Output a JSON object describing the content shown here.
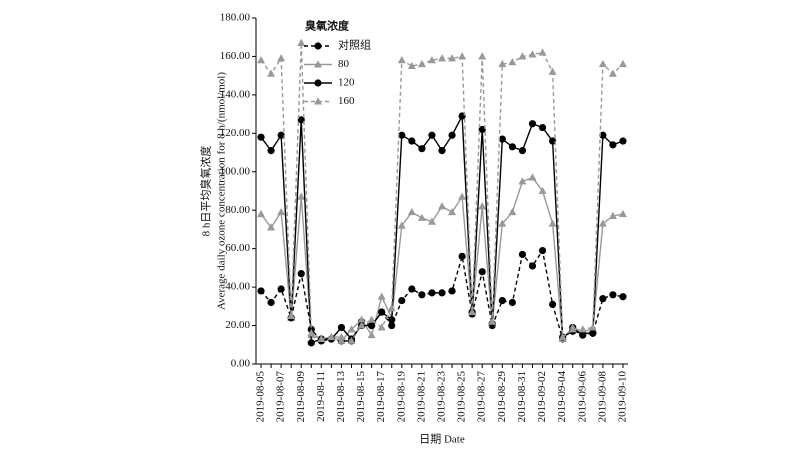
{
  "chart_data": {
    "type": "line",
    "ylabel": [
      "8 h日平均臭氧浓度",
      "Average daily ozone concentration for 8 h/(nmol/mol)"
    ],
    "xlabel": "日期 Date",
    "legend_title": "臭氧浓度",
    "legend": "upper left",
    "categories": [
      "2019-08-05",
      null,
      "2019-08-07",
      null,
      "2019-08-09",
      null,
      "2019-08-11",
      null,
      "2019-08-13",
      null,
      "2019-08-15",
      null,
      "2019-08-17",
      null,
      "2019-08-19",
      null,
      "2019-08-21",
      null,
      "2019-08-23",
      null,
      "2019-08-25",
      null,
      "2019-08-27",
      null,
      "2019-08-29",
      null,
      "2019-08-31",
      null,
      "2019-09-02",
      null,
      "2019-09-04",
      null,
      "2019-09-06",
      null,
      "2019-09-08",
      null,
      "2019-09-10"
    ],
    "ylim": [
      0,
      180
    ],
    "yticks": [
      {
        "value": 0,
        "label": "0.00"
      },
      {
        "value": 20,
        "label": "20.00"
      },
      {
        "value": 40,
        "label": "40.00"
      },
      {
        "value": 60,
        "label": "60.00"
      },
      {
        "value": 80,
        "label": "80.00"
      },
      {
        "value": 100,
        "label": "100.00"
      },
      {
        "value": 120,
        "label": "120.00"
      },
      {
        "value": 140,
        "label": "140.00"
      },
      {
        "value": 160,
        "label": "160.00"
      },
      {
        "value": 180,
        "label": "180.00"
      }
    ],
    "series": [
      {
        "name": "对照组",
        "color": "#000000",
        "dash": true,
        "marker": "circle",
        "values": [
          38,
          32,
          39,
          24,
          47,
          18,
          12,
          13,
          12,
          12,
          22,
          20,
          27,
          20,
          33,
          39,
          36,
          37,
          37,
          38,
          56,
          26,
          48,
          20,
          33,
          32,
          57,
          51,
          59,
          31,
          13,
          19,
          15,
          16,
          34,
          36,
          35
        ]
      },
      {
        "name": "80",
        "color": "#999999",
        "dash": false,
        "marker": "triangle",
        "values": [
          78,
          71,
          79,
          24,
          87,
          15,
          13,
          14,
          12,
          18,
          23,
          15,
          35,
          24,
          72,
          79,
          76,
          74,
          82,
          79,
          87,
          27,
          82,
          21,
          73,
          79,
          95,
          97,
          90,
          73,
          13,
          19,
          17,
          18,
          73,
          77,
          78
        ]
      },
      {
        "name": "120",
        "color": "#000000",
        "dash": false,
        "marker": "circle",
        "values": [
          118,
          111,
          119,
          24,
          127,
          11,
          13,
          13,
          19,
          13,
          20,
          20,
          27,
          23,
          119,
          116,
          112,
          119,
          111,
          119,
          129,
          27,
          122,
          21,
          117,
          113,
          111,
          125,
          123,
          116,
          14,
          17,
          16,
          16,
          119,
          114,
          116
        ]
      },
      {
        "name": "160",
        "color": "#999999",
        "dash": true,
        "marker": "triangle",
        "values": [
          158,
          151,
          159,
          25,
          167,
          16,
          13,
          14,
          14,
          12,
          20,
          23,
          19,
          29,
          158,
          155,
          156,
          158,
          159,
          159,
          160,
          27,
          160,
          22,
          156,
          157,
          160,
          161,
          162,
          152,
          14,
          18,
          18,
          19,
          156,
          151,
          156
        ]
      }
    ]
  }
}
